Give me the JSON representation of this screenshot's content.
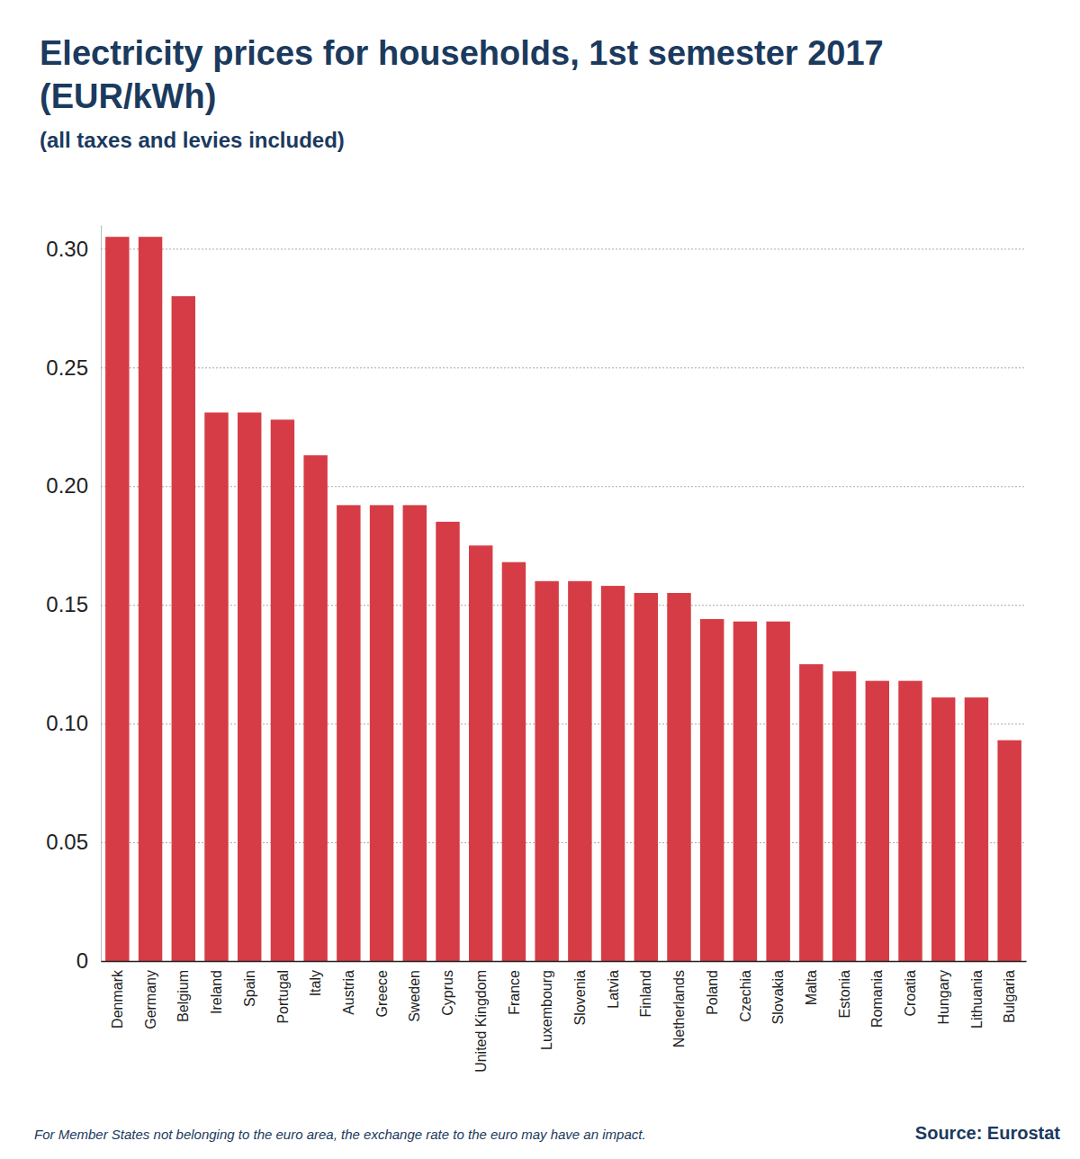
{
  "chart_data": {
    "type": "bar",
    "title": "Electricity prices for households, 1st semester 2017 (EUR/kWh)",
    "subtitle": "(all taxes and levies included)",
    "note": "For Member States not belonging to the euro area, the exchange rate to the euro may have an impact.",
    "source": "Source: Eurostat",
    "categories": [
      "Denmark",
      "Germany",
      "Belgium",
      "Ireland",
      "Spain",
      "Portugal",
      "Italy",
      "Austria",
      "Greece",
      "Sweden",
      "Cyprus",
      "United Kingdom",
      "France",
      "Luxembourg",
      "Slovenia",
      "Latvia",
      "Finland",
      "Netherlands",
      "Poland",
      "Czechia",
      "Slovakia",
      "Malta",
      "Estonia",
      "Romania",
      "Croatia",
      "Hungary",
      "Lithuania",
      "Bulgaria"
    ],
    "values": [
      0.305,
      0.305,
      0.28,
      0.231,
      0.231,
      0.228,
      0.213,
      0.192,
      0.192,
      0.192,
      0.185,
      0.175,
      0.168,
      0.16,
      0.16,
      0.158,
      0.155,
      0.155,
      0.144,
      0.143,
      0.143,
      0.125,
      0.122,
      0.118,
      0.118,
      0.111,
      0.111,
      0.093
    ],
    "color": "#d63c45",
    "ylim": [
      0,
      0.31
    ],
    "yticks": [
      0,
      0.05,
      {
        "value": 0.1,
        "label": "0.10"
      },
      0.15,
      {
        "value": 0.2,
        "label": "0.20"
      },
      0.25,
      {
        "value": 0.3,
        "label": "0.30"
      }
    ],
    "grid": true
  }
}
